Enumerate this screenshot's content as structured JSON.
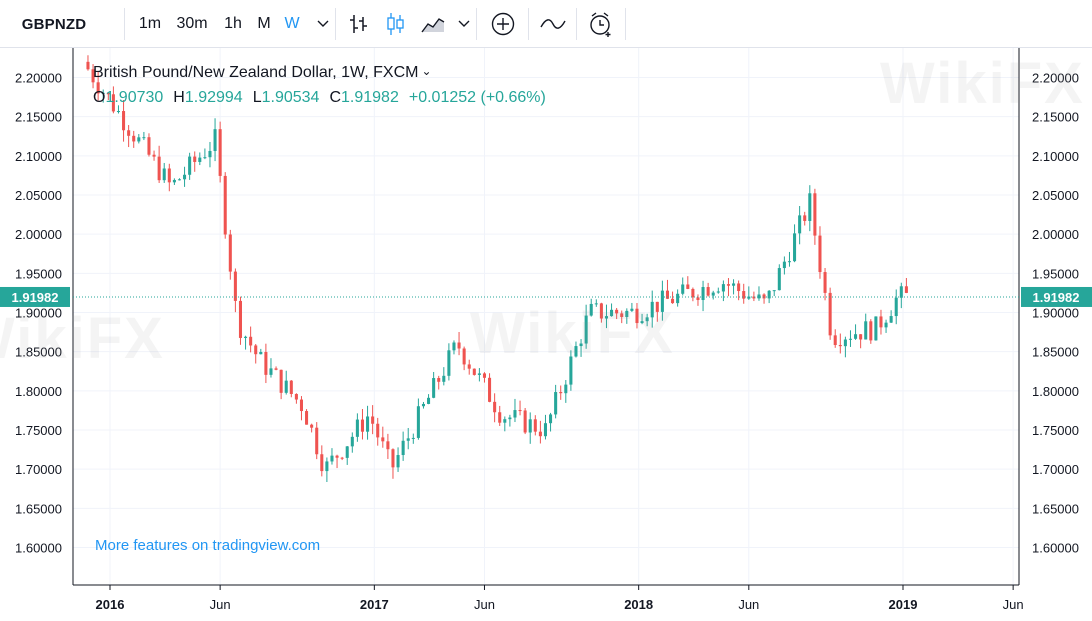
{
  "toolbar": {
    "symbol": "GBPNZD",
    "intervals": [
      "1m",
      "30m",
      "1h",
      "M",
      "W"
    ],
    "active_interval": "W",
    "icons": [
      "chevron-down-icon",
      "bar-chart-icon",
      "candlestick-icon",
      "area-chart-icon",
      "chevron-down-icon",
      "add-indicator-icon",
      "compare-icon",
      "alert-clock-icon"
    ]
  },
  "legend": {
    "title": "British Pound/New Zealand Dollar, 1W, FXCM",
    "open_label": "O",
    "open": "1.90730",
    "high_label": "H",
    "high": "1.92994",
    "low_label": "L",
    "low": "1.90534",
    "close_label": "C",
    "close": "1.91982",
    "change": "+0.01252 (+0.66%)"
  },
  "footer_link": "More features on tradingview.com",
  "watermark": "WikiFX",
  "colors": {
    "up": "#26a69a",
    "down": "#ef5350",
    "grid": "#f0f3fa",
    "axis": "#131722",
    "price_line": "#26a69a",
    "accent": "#2196f3"
  },
  "chart_data": {
    "type": "candlestick",
    "title": "British Pound/New Zealand Dollar, 1W, FXCM",
    "ylim": [
      1.56,
      2.24
    ],
    "y_ticks": [
      "2.20000",
      "2.15000",
      "2.10000",
      "2.05000",
      "2.00000",
      "1.95000",
      "1.90000",
      "1.85000",
      "1.80000",
      "1.75000",
      "1.70000",
      "1.65000",
      "1.60000"
    ],
    "x_ticks": [
      "2016",
      "Jun",
      "2017",
      "Jun",
      "2018",
      "Jun",
      "2019",
      "Jun"
    ],
    "x_range": [
      "2015-11",
      "2019-07"
    ],
    "last_price": "1.91982",
    "grid": true,
    "key_points": [
      {
        "date": "2015-12",
        "value": 2.22
      },
      {
        "date": "2016-02",
        "value": 2.14
      },
      {
        "date": "2016-04",
        "value": 2.06
      },
      {
        "date": "2016-06",
        "value": 2.12
      },
      {
        "date": "2016-07",
        "value": 1.89
      },
      {
        "date": "2016-08",
        "value": 1.84
      },
      {
        "date": "2016-10",
        "value": 1.78
      },
      {
        "date": "2016-11",
        "value": 1.7
      },
      {
        "date": "2017-01",
        "value": 1.77
      },
      {
        "date": "2017-02",
        "value": 1.7
      },
      {
        "date": "2017-05",
        "value": 1.86
      },
      {
        "date": "2017-07",
        "value": 1.77
      },
      {
        "date": "2017-09",
        "value": 1.75
      },
      {
        "date": "2017-11",
        "value": 1.9
      },
      {
        "date": "2018-01",
        "value": 1.9
      },
      {
        "date": "2018-05",
        "value": 1.94
      },
      {
        "date": "2018-07",
        "value": 1.91
      },
      {
        "date": "2018-09",
        "value": 2.04
      },
      {
        "date": "2018-10",
        "value": 1.87
      },
      {
        "date": "2018-12",
        "value": 1.88
      },
      {
        "date": "2019-01",
        "value": 1.92
      }
    ]
  }
}
